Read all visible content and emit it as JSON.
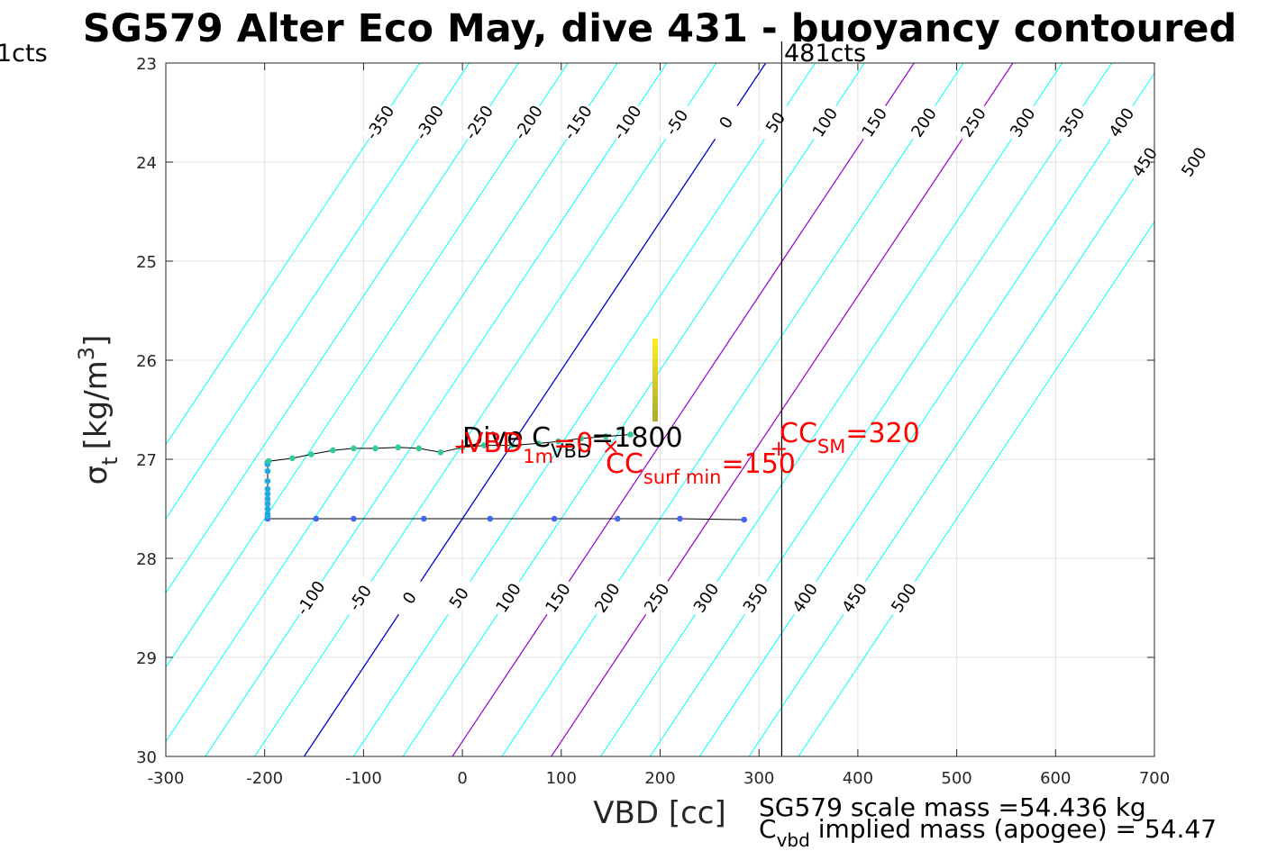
{
  "title": "SG579 Alter Eco May, dive 431 - buoyancy contoured",
  "xlabel": "VBD [cc]",
  "ylabel_main": "σ",
  "ylabel_sub": "t",
  "ylabel_unit": "[kg/m",
  "ylabel_sup": "3",
  "ylabel_close": "]",
  "footer": {
    "line1": "SG579 scale mass =54.436 kg",
    "line2_main": "C",
    "line2_sub": "vbd",
    "line2_rest": " implied mass (apogee) = 54.47"
  },
  "top_labels": {
    "left": "1cts",
    "right": "481cts"
  },
  "annotations": {
    "dive_c_vbd_main": "Dive C",
    "dive_c_vbd_sub": "VBD",
    "dive_c_vbd_rest": "=1800",
    "vbd_1m_main": "VBD",
    "vbd_1m_sub": "1m",
    "vbd_1m_rest": "=0",
    "cc_surf_main": "CC",
    "cc_surf_sub": "surf min",
    "cc_surf_rest": "=150",
    "cc_sm_main": "CC",
    "cc_sm_sub": "SM",
    "cc_sm_rest": "=320"
  },
  "colors": {
    "contour": "#00ffff",
    "zero_contour": "#0000cc",
    "magenta_contour": "#9900cc",
    "annotation": "#ff0000",
    "limit_line": "#000000",
    "grid": "#e0e0e0"
  },
  "chart_data": {
    "type": "line",
    "xlim": [
      -300,
      700
    ],
    "ylim": [
      23,
      30
    ],
    "y_reversed": true,
    "xticks": [
      -300,
      -200,
      -100,
      0,
      100,
      200,
      300,
      400,
      500,
      600,
      700
    ],
    "yticks": [
      23,
      24,
      25,
      26,
      27,
      28,
      29,
      30
    ],
    "grid": true,
    "contours": {
      "slope_cc_per_kgm3": -66.7,
      "ref_sigma": 27.6,
      "levels": [
        -350,
        -300,
        -250,
        -200,
        -150,
        -100,
        -50,
        0,
        50,
        100,
        150,
        200,
        250,
        300,
        350,
        400,
        450,
        500
      ],
      "highlight_zero": 0,
      "highlight_magenta": [
        150,
        250
      ],
      "upper_labels": [
        "-350",
        "-300",
        "-250",
        "-200",
        "-150",
        "-100",
        "-50",
        "0",
        "50",
        "100",
        "150",
        "200",
        "250",
        "300",
        "350",
        "400",
        "450",
        "500"
      ],
      "lower_labels": [
        "-100",
        "-50",
        "0",
        "50",
        "100",
        "150",
        "200",
        "250",
        "300",
        "350",
        "400",
        "450",
        "500"
      ]
    },
    "vertical_line_x": 323,
    "descent": {
      "color": "#4466ee",
      "x": [
        285,
        220,
        157,
        93,
        28,
        -39,
        -110,
        -148,
        -197
      ],
      "y": [
        27.61,
        27.6,
        27.6,
        27.6,
        27.6,
        27.6,
        27.6,
        27.6,
        27.6
      ]
    },
    "bottom": {
      "color": "#22aadd",
      "x": [
        -197,
        -197,
        -197,
        -197,
        -197,
        -197,
        -197,
        -197,
        -197,
        -197,
        -197,
        -196
      ],
      "y": [
        27.58,
        27.55,
        27.5,
        27.45,
        27.4,
        27.35,
        27.3,
        27.22,
        27.12,
        27.05,
        27.03,
        27.02
      ]
    },
    "ascent": {
      "color": "#33cc99",
      "x": [
        -196,
        -172,
        -153,
        -131,
        -110,
        -88,
        -65,
        -44,
        -22,
        0,
        22,
        50,
        77,
        97,
        120,
        145,
        170
      ],
      "y": [
        27.02,
        26.99,
        26.95,
        26.91,
        26.89,
        26.89,
        26.88,
        26.89,
        26.93,
        26.88,
        26.86,
        26.86,
        26.84,
        26.82,
        26.79,
        26.77,
        26.75
      ]
    },
    "color_bar": {
      "x": 195,
      "y_top": 25.78,
      "y_bottom": 26.62,
      "color_top": "#ffee22",
      "color_bottom": "#aaaa33"
    },
    "markers": [
      {
        "x": 0,
        "y": 26.87,
        "symbol": "+",
        "color": "#ff0000"
      },
      {
        "x": 150,
        "y": 26.87,
        "symbol": "×",
        "color": "#ff0000"
      },
      {
        "x": 320,
        "y": 26.89,
        "symbol": "+",
        "color": "#ff0000"
      }
    ]
  }
}
